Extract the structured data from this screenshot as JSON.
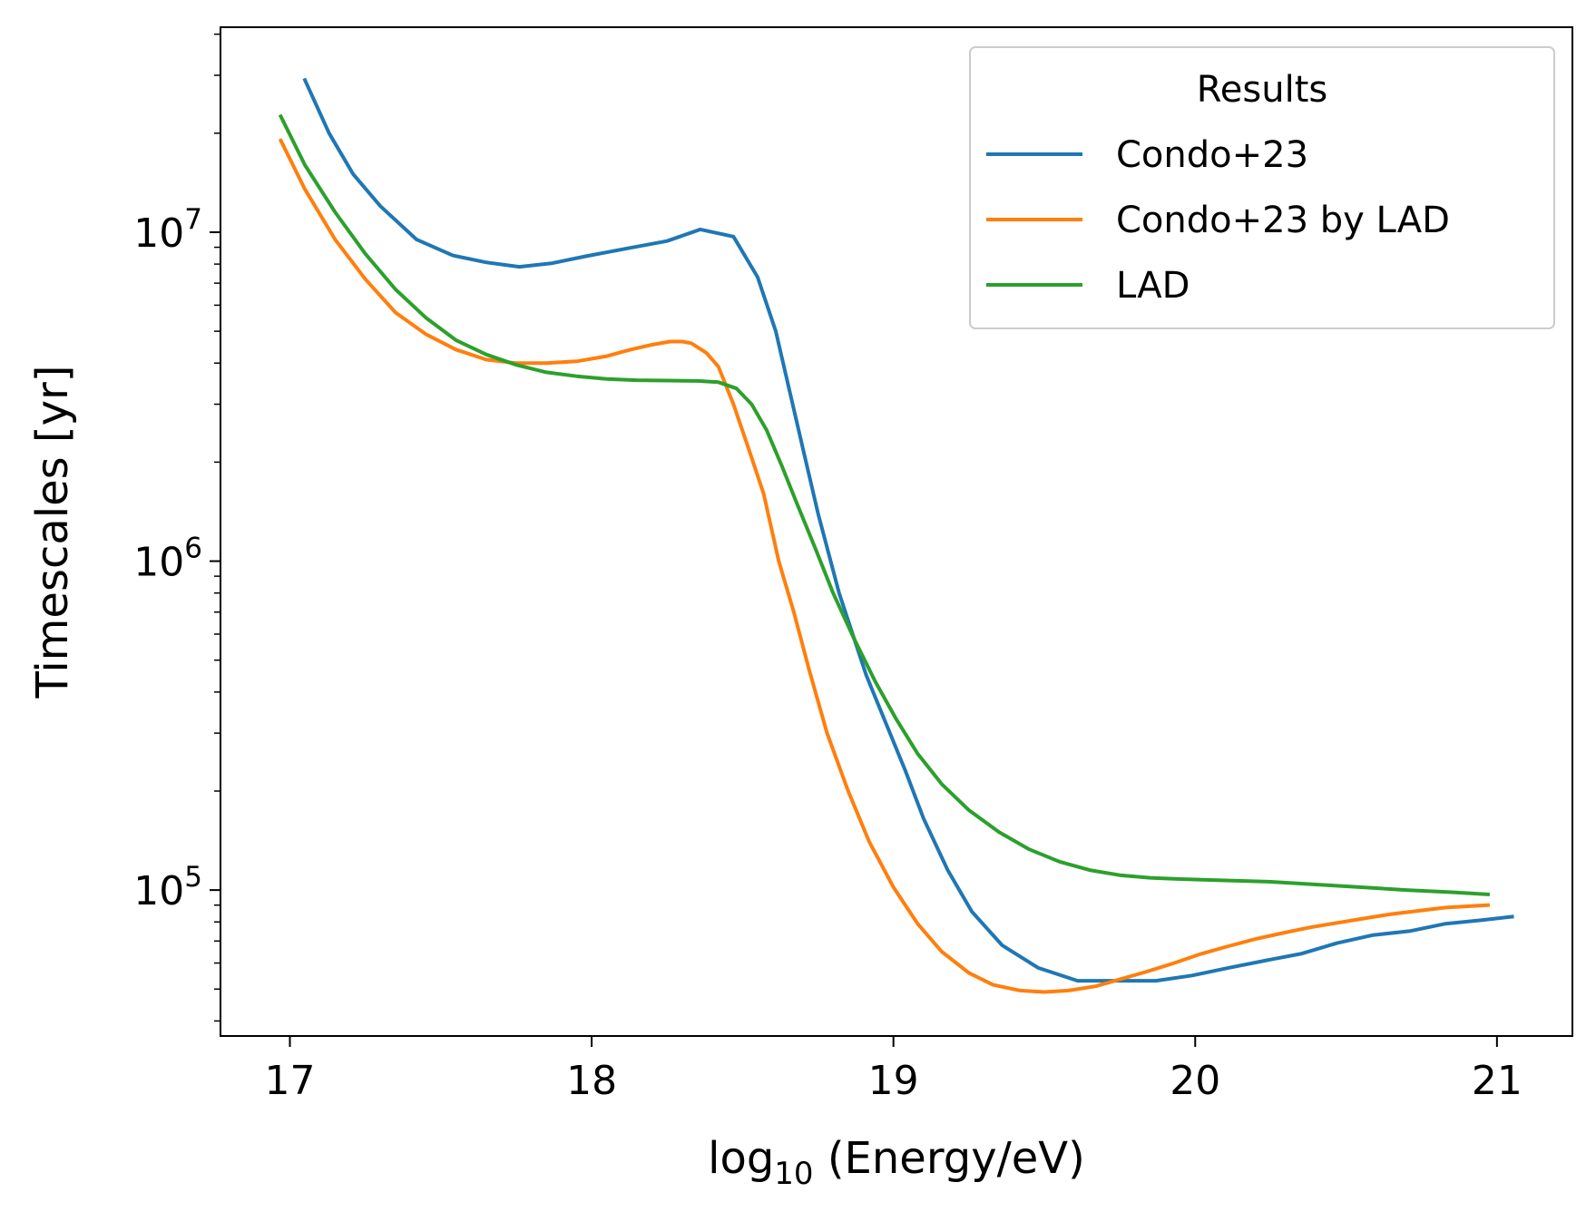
{
  "chart_data": {
    "type": "line",
    "xlabel": "log10 (Energy/eV)",
    "xlabel_parts": {
      "pre": "log",
      "sub": "10",
      "post": " (Energy/eV)"
    },
    "ylabel": "Timescales [yr]",
    "xlim": [
      16.77,
      21.25
    ],
    "ylim": [
      36000,
      42000000
    ],
    "yscale": "log",
    "grid": false,
    "x_ticks": [
      17,
      18,
      19,
      20,
      21
    ],
    "x_tick_labels": [
      "17",
      "18",
      "19",
      "20",
      "21"
    ],
    "y_ticks": [
      100000,
      1000000,
      10000000
    ],
    "y_tick_labels": [
      {
        "base": "10",
        "exp": "5"
      },
      {
        "base": "10",
        "exp": "6"
      },
      {
        "base": "10",
        "exp": "7"
      }
    ],
    "legend": {
      "title": "Results",
      "position": "top-right",
      "entries": [
        "Condo+23",
        "Condo+23 by LAD",
        "LAD"
      ]
    },
    "series": [
      {
        "name": "Condo+23",
        "color": "#1f77b4",
        "points": [
          [
            17.05,
            29000000
          ],
          [
            17.13,
            20000000
          ],
          [
            17.21,
            15000000
          ],
          [
            17.3,
            12000000
          ],
          [
            17.42,
            9500000
          ],
          [
            17.54,
            8500000
          ],
          [
            17.65,
            8100000
          ],
          [
            17.76,
            7850000
          ],
          [
            17.87,
            8050000
          ],
          [
            17.98,
            8450000
          ],
          [
            18.11,
            8900000
          ],
          [
            18.25,
            9400000
          ],
          [
            18.36,
            10200000
          ],
          [
            18.47,
            9700000
          ],
          [
            18.55,
            7300000
          ],
          [
            18.61,
            5000000
          ],
          [
            18.7,
            2200000
          ],
          [
            18.75,
            1400000
          ],
          [
            18.82,
            800000
          ],
          [
            18.91,
            450000
          ],
          [
            18.97,
            330000
          ],
          [
            19.04,
            230000
          ],
          [
            19.1,
            165000
          ],
          [
            19.18,
            115000
          ],
          [
            19.26,
            86000
          ],
          [
            19.36,
            68000
          ],
          [
            19.48,
            58000
          ],
          [
            19.61,
            53000
          ],
          [
            19.74,
            53000
          ],
          [
            19.87,
            53000
          ],
          [
            19.99,
            55000
          ],
          [
            20.11,
            58000
          ],
          [
            20.23,
            61000
          ],
          [
            20.35,
            64000
          ],
          [
            20.47,
            69000
          ],
          [
            20.59,
            73000
          ],
          [
            20.71,
            75000
          ],
          [
            20.83,
            79000
          ],
          [
            20.95,
            81000
          ],
          [
            21.05,
            83000
          ]
        ]
      },
      {
        "name": "Condo+23 by LAD",
        "color": "#ff7f0e",
        "points": [
          [
            16.97,
            19000000
          ],
          [
            17.05,
            13500000
          ],
          [
            17.15,
            9500000
          ],
          [
            17.25,
            7200000
          ],
          [
            17.35,
            5700000
          ],
          [
            17.45,
            4900000
          ],
          [
            17.55,
            4400000
          ],
          [
            17.65,
            4100000
          ],
          [
            17.75,
            4000000
          ],
          [
            17.85,
            4000000
          ],
          [
            17.95,
            4050000
          ],
          [
            18.05,
            4200000
          ],
          [
            18.13,
            4400000
          ],
          [
            18.2,
            4550000
          ],
          [
            18.26,
            4650000
          ],
          [
            18.3,
            4650000
          ],
          [
            18.33,
            4600000
          ],
          [
            18.38,
            4300000
          ],
          [
            18.42,
            3900000
          ],
          [
            18.47,
            3000000
          ],
          [
            18.52,
            2200000
          ],
          [
            18.57,
            1600000
          ],
          [
            18.62,
            1000000
          ],
          [
            18.67,
            700000
          ],
          [
            18.72,
            470000
          ],
          [
            18.78,
            300000
          ],
          [
            18.85,
            200000
          ],
          [
            18.92,
            140000
          ],
          [
            19.0,
            102000
          ],
          [
            19.08,
            79000
          ],
          [
            19.16,
            65000
          ],
          [
            19.25,
            56000
          ],
          [
            19.33,
            51500
          ],
          [
            19.42,
            49500
          ],
          [
            19.5,
            49000
          ],
          [
            19.58,
            49500
          ],
          [
            19.67,
            51000
          ],
          [
            19.75,
            53500
          ],
          [
            19.84,
            56500
          ],
          [
            19.93,
            60000
          ],
          [
            20.02,
            64000
          ],
          [
            20.11,
            67500
          ],
          [
            20.2,
            71000
          ],
          [
            20.29,
            74000
          ],
          [
            20.38,
            77000
          ],
          [
            20.47,
            79500
          ],
          [
            20.56,
            82000
          ],
          [
            20.65,
            84500
          ],
          [
            20.74,
            86500
          ],
          [
            20.83,
            88500
          ],
          [
            20.97,
            90000
          ]
        ]
      },
      {
        "name": "LAD",
        "color": "#2ca02c",
        "points": [
          [
            16.97,
            22500000
          ],
          [
            17.05,
            16000000
          ],
          [
            17.15,
            11500000
          ],
          [
            17.25,
            8600000
          ],
          [
            17.35,
            6700000
          ],
          [
            17.45,
            5500000
          ],
          [
            17.55,
            4700000
          ],
          [
            17.65,
            4250000
          ],
          [
            17.75,
            3950000
          ],
          [
            17.85,
            3750000
          ],
          [
            17.95,
            3650000
          ],
          [
            18.05,
            3580000
          ],
          [
            18.15,
            3550000
          ],
          [
            18.25,
            3540000
          ],
          [
            18.35,
            3530000
          ],
          [
            18.42,
            3500000
          ],
          [
            18.48,
            3350000
          ],
          [
            18.53,
            3000000
          ],
          [
            18.58,
            2500000
          ],
          [
            18.63,
            1950000
          ],
          [
            18.68,
            1500000
          ],
          [
            18.74,
            1100000
          ],
          [
            18.8,
            800000
          ],
          [
            18.87,
            580000
          ],
          [
            18.94,
            430000
          ],
          [
            19.01,
            330000
          ],
          [
            19.08,
            260000
          ],
          [
            19.16,
            210000
          ],
          [
            19.25,
            175000
          ],
          [
            19.35,
            150000
          ],
          [
            19.45,
            133000
          ],
          [
            19.55,
            122000
          ],
          [
            19.65,
            115000
          ],
          [
            19.75,
            111000
          ],
          [
            19.85,
            109000
          ],
          [
            19.95,
            108000
          ],
          [
            20.1,
            107000
          ],
          [
            20.25,
            106000
          ],
          [
            20.4,
            104000
          ],
          [
            20.55,
            102000
          ],
          [
            20.7,
            100000
          ],
          [
            20.85,
            98500
          ],
          [
            20.97,
            97000
          ]
        ]
      }
    ]
  }
}
